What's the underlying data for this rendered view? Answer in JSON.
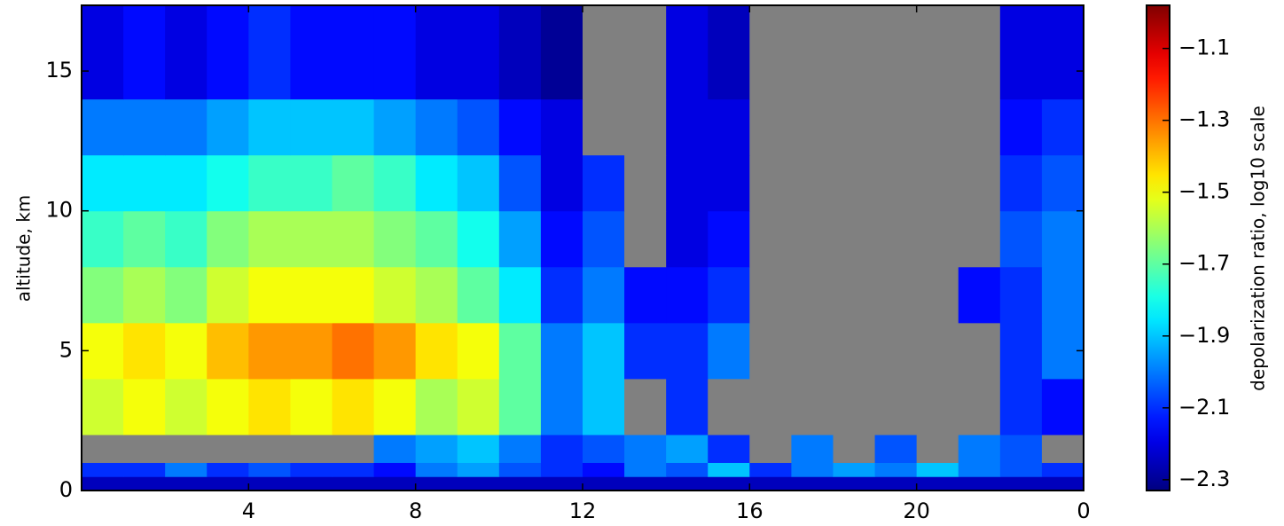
{
  "chart_data": {
    "type": "heatmap",
    "y_label": "altitude, km",
    "colorbar_label": "depolarization ratio, log10 scale",
    "x_bins": [
      0,
      1,
      2,
      3,
      4,
      5,
      6,
      7,
      8,
      9,
      10,
      11,
      12,
      13,
      14,
      15,
      16,
      17,
      18,
      19,
      20,
      21,
      22,
      23,
      24
    ],
    "y_bins": [
      0,
      0.5,
      1,
      2,
      4,
      6,
      8,
      10,
      12,
      14,
      17.35
    ],
    "values": [
      [
        -2.25,
        -2.25,
        -2.25,
        -2.25,
        -2.25,
        -2.25,
        -2.25,
        -2.25,
        -2.25,
        -2.25,
        -2.25,
        -2.25,
        -2.25,
        -2.25,
        -2.25,
        -2.25,
        -2.25,
        -2.25,
        -2.25,
        -2.25,
        -2.25,
        -2.25,
        -2.25,
        -2.25
      ],
      [
        -2.1,
        -2.1,
        -2.0,
        -2.1,
        -2.05,
        -2.1,
        -2.1,
        -2.15,
        -2.0,
        -1.95,
        -2.05,
        -2.1,
        -2.15,
        -2.0,
        -2.05,
        -1.9,
        -2.1,
        -2.0,
        -1.95,
        -2.0,
        -1.9,
        -2.0,
        -2.05,
        -2.1
      ],
      [
        null,
        null,
        null,
        null,
        null,
        null,
        null,
        -2.0,
        -1.95,
        -1.9,
        -2.0,
        -2.1,
        -2.05,
        -2.0,
        -1.95,
        -2.1,
        null,
        -2.0,
        null,
        -2.05,
        null,
        -2.0,
        -2.05,
        null
      ],
      [
        -1.55,
        -1.5,
        -1.55,
        -1.5,
        -1.45,
        -1.5,
        -1.45,
        -1.5,
        -1.6,
        -1.55,
        -1.7,
        -2.0,
        -1.9,
        null,
        -2.1,
        null,
        null,
        null,
        null,
        null,
        null,
        null,
        -2.1,
        -2.15
      ],
      [
        -1.5,
        -1.45,
        -1.5,
        -1.4,
        -1.35,
        -1.35,
        -1.3,
        -1.35,
        -1.45,
        -1.5,
        -1.7,
        -2.0,
        -1.9,
        -2.1,
        -2.1,
        -2.0,
        null,
        null,
        null,
        null,
        null,
        null,
        -2.1,
        -2.0
      ],
      [
        -1.65,
        -1.6,
        -1.65,
        -1.55,
        -1.5,
        -1.5,
        -1.5,
        -1.55,
        -1.6,
        -1.7,
        -1.85,
        -2.1,
        -2.0,
        -2.15,
        -2.15,
        -2.1,
        null,
        null,
        null,
        null,
        null,
        -2.15,
        -2.1,
        -2.0
      ],
      [
        -1.75,
        -1.7,
        -1.75,
        -1.65,
        -1.6,
        -1.6,
        -1.6,
        -1.65,
        -1.7,
        -1.8,
        -1.95,
        -2.15,
        -2.05,
        null,
        -2.2,
        -2.15,
        null,
        null,
        null,
        null,
        null,
        null,
        -2.05,
        -2.0
      ],
      [
        -1.85,
        -1.85,
        -1.85,
        -1.8,
        -1.75,
        -1.75,
        -1.7,
        -1.75,
        -1.85,
        -1.9,
        -2.05,
        -2.2,
        -2.1,
        null,
        -2.2,
        -2.2,
        null,
        null,
        null,
        null,
        null,
        null,
        -2.1,
        -2.05
      ],
      [
        -2.0,
        -2.0,
        -2.0,
        -1.95,
        -1.9,
        -1.9,
        -1.9,
        -1.95,
        -2.0,
        -2.05,
        -2.15,
        -2.2,
        null,
        null,
        -2.2,
        -2.2,
        null,
        null,
        null,
        null,
        null,
        null,
        -2.15,
        -2.1
      ],
      [
        -2.2,
        -2.15,
        -2.2,
        -2.15,
        -2.1,
        -2.15,
        -2.15,
        -2.15,
        -2.2,
        -2.2,
        -2.25,
        -2.3,
        null,
        null,
        -2.2,
        -2.25,
        null,
        null,
        null,
        null,
        null,
        null,
        -2.2,
        -2.2
      ]
    ],
    "missing_color": "#808080",
    "colormap": "jet",
    "xlim": [
      0,
      24
    ],
    "xticks": [
      4,
      8,
      12,
      16,
      20,
      {
        "value": 24,
        "label": "0"
      }
    ],
    "ylim": [
      0,
      17.35
    ],
    "yticks": [
      0,
      5,
      10,
      15
    ],
    "clim": [
      -2.33,
      -0.98
    ],
    "cticks": [
      {
        "value": -1.1,
        "label": "−1.1"
      },
      {
        "value": -1.3,
        "label": "−1.3"
      },
      {
        "value": -1.5,
        "label": "−1.5"
      },
      {
        "value": -1.7,
        "label": "−1.7"
      },
      {
        "value": -1.9,
        "label": "−1.9"
      },
      {
        "value": -2.1,
        "label": "−2.1"
      },
      {
        "value": -2.3,
        "label": "−2.3"
      }
    ]
  }
}
